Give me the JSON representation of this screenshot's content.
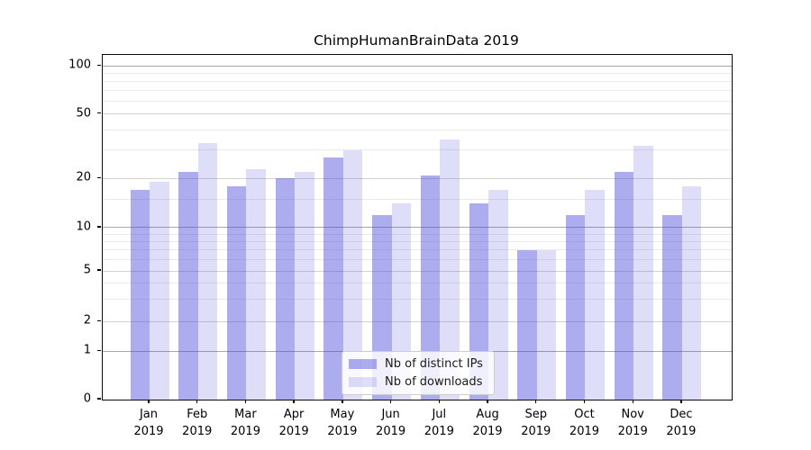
{
  "chart_data": {
    "type": "bar",
    "title": "ChimpHumanBrainData 2019",
    "x": {
      "categories": [
        "Jan",
        "Feb",
        "Mar",
        "Apr",
        "May",
        "Jun",
        "Jul",
        "Aug",
        "Sep",
        "Oct",
        "Nov",
        "Dec"
      ],
      "year": "2019"
    },
    "y": {
      "tick_labels": [
        "100",
        "50",
        "20",
        "10",
        "5",
        "2",
        "1",
        "0"
      ],
      "range_shown": [
        0,
        100
      ],
      "scale": "log-like",
      "grid": "horizontal major and minor"
    },
    "series": [
      {
        "name": "Nb of distinct IPs",
        "color": "#acacef",
        "values": [
          17,
          22,
          18,
          20,
          27,
          12,
          21,
          14,
          7,
          12,
          22,
          12
        ]
      },
      {
        "name": "Nb of downloads",
        "color": "#dedef9",
        "values": [
          19,
          33,
          23,
          22,
          30,
          14,
          35,
          17,
          7,
          17,
          32,
          18
        ]
      }
    ],
    "legend": {
      "position": "bottom-center"
    }
  }
}
